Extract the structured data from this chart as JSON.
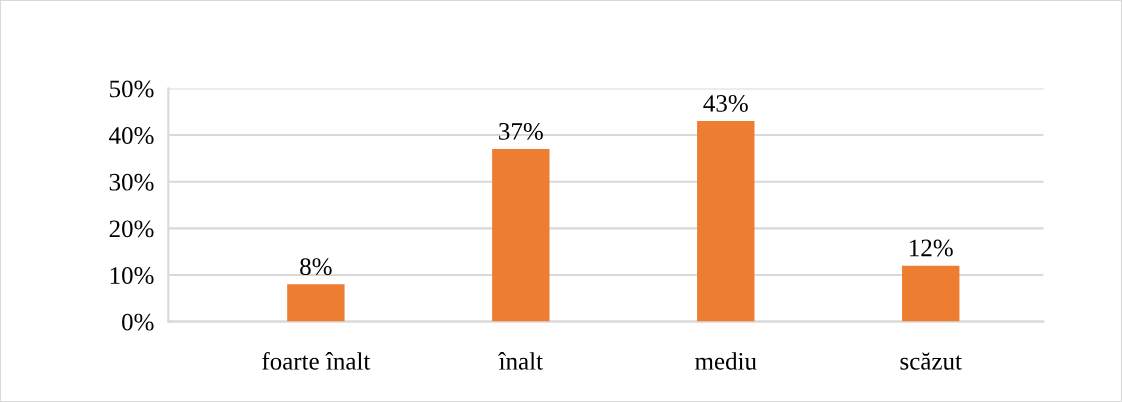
{
  "chart_data": {
    "type": "bar",
    "categories": [
      "foarte înalt",
      "înalt",
      "mediu",
      "scăzut"
    ],
    "values": [
      8,
      37,
      43,
      12
    ],
    "color": "#ed7d31",
    "value_labels": [
      "8%",
      "37%",
      "43%",
      "12%"
    ],
    "ylim": [
      0,
      50
    ],
    "yticks": [
      {
        "value": 0,
        "label": "0%"
      },
      {
        "value": 10,
        "label": "10%"
      },
      {
        "value": 20,
        "label": "20%"
      },
      {
        "value": 30,
        "label": "30%"
      },
      {
        "value": 40,
        "label": "40%"
      },
      {
        "value": 50,
        "label": "50%"
      }
    ],
    "grid": "y",
    "legend": false
  }
}
